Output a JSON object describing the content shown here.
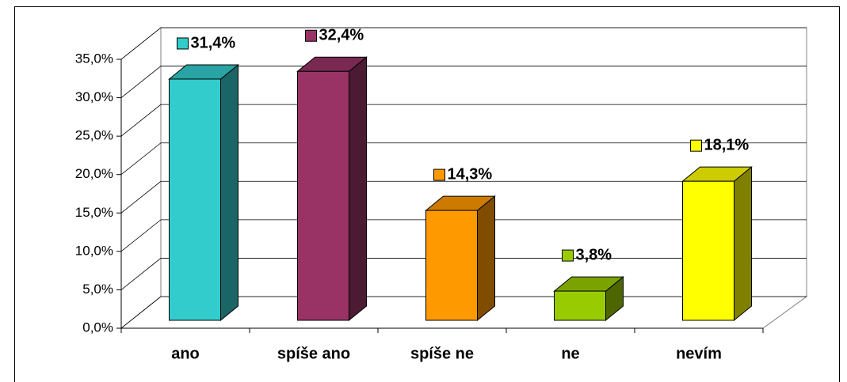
{
  "chart_data": {
    "type": "bar3d",
    "categories": [
      "ano",
      "spíše ano",
      "spíše ne",
      "ne",
      "nevím"
    ],
    "values": [
      31.4,
      32.4,
      14.3,
      3.8,
      18.1
    ],
    "value_labels": [
      "31,4%",
      "32,4%",
      "14,3%",
      "3,8%",
      "18,1%"
    ],
    "colors": [
      "#33CCCC",
      "#993366",
      "#FF9900",
      "#99CC00",
      "#FFFF00"
    ],
    "ylim": [
      0,
      35
    ],
    "yticks": [
      {
        "value": 0,
        "label": "0,0%"
      },
      {
        "value": 5,
        "label": "5,0%"
      },
      {
        "value": 10,
        "label": "10,0%"
      },
      {
        "value": 15,
        "label": "15,0%"
      },
      {
        "value": 20,
        "label": "20,0%"
      },
      {
        "value": 25,
        "label": "25,0%"
      },
      {
        "value": 30,
        "label": "30,0%"
      },
      {
        "value": 35,
        "label": "35,0%"
      }
    ],
    "grid": true
  }
}
